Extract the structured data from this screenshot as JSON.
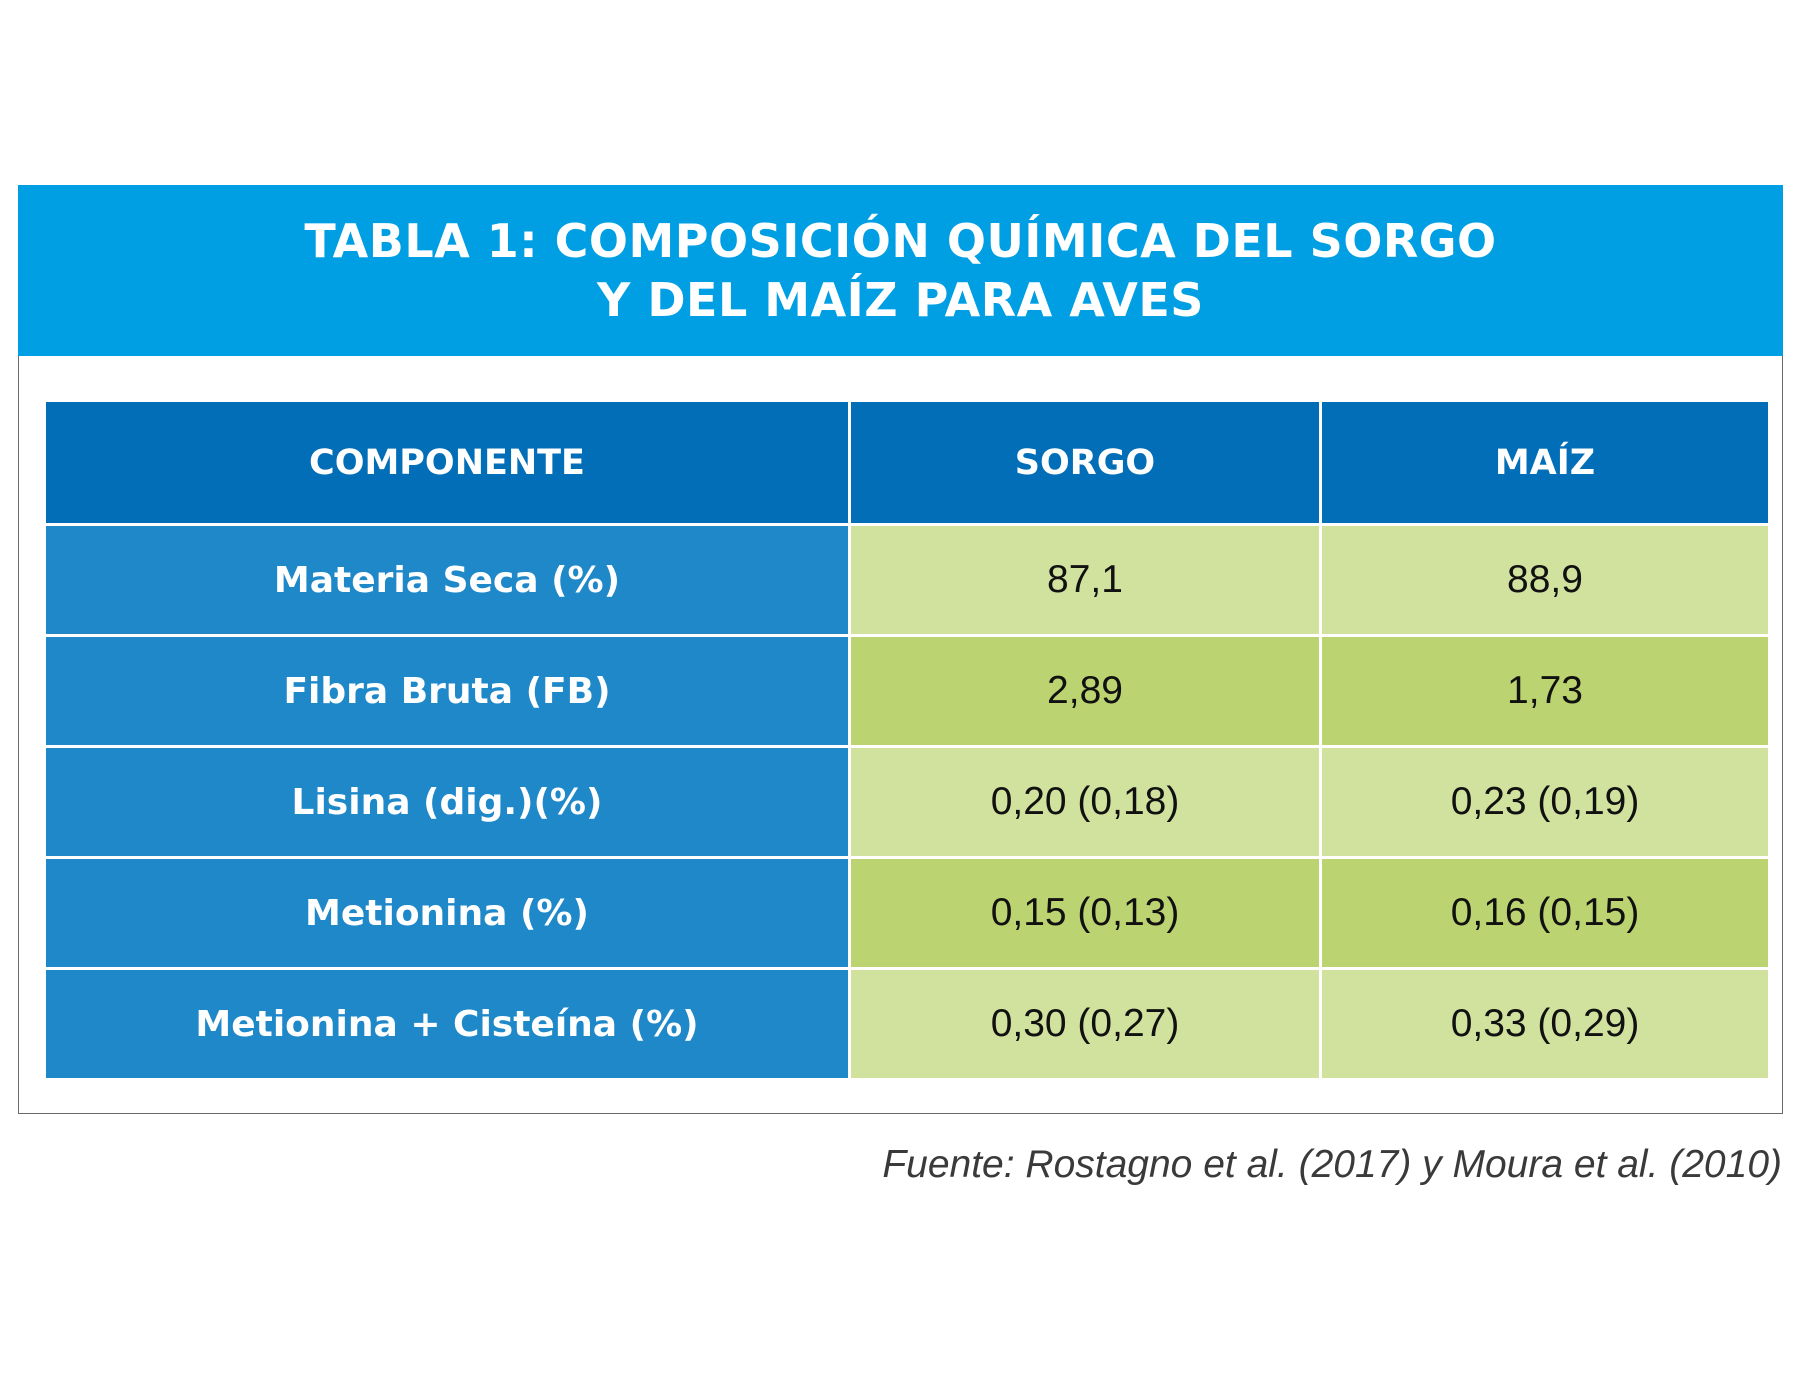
{
  "title": {
    "line1": "TABLA 1: COMPOSICIÓN QUÍMICA DEL SORGO",
    "line2": "Y DEL MAÍZ PARA AVES"
  },
  "colors": {
    "title_band": "#009fe3",
    "header": "#016eb7",
    "label_column": "#1e88c9",
    "row_light": "#d1e19e",
    "row_dark": "#bbd370"
  },
  "chart_data": {
    "type": "table",
    "columns": [
      "COMPONENTE",
      "SORGO",
      "MAÍZ"
    ],
    "rows": [
      {
        "label": "Materia Seca (%)",
        "sorgo": "87,1",
        "maiz": "88,9"
      },
      {
        "label": "Fibra Bruta (FB)",
        "sorgo": "2,89",
        "maiz": "1,73"
      },
      {
        "label": "Lisina (dig.)(%)",
        "sorgo": "0,20 (0,18)",
        "maiz": "0,23 (0,19)"
      },
      {
        "label": "Metionina (%)",
        "sorgo": "0,15 (0,13)",
        "maiz": "0,16 (0,15)"
      },
      {
        "label": "Metionina + Cisteína (%)",
        "sorgo": "0,30 (0,27)",
        "maiz": "0,33 (0,29)"
      }
    ]
  },
  "source": "Fuente: Rostagno et al. (2017) y Moura et al. (2010)"
}
